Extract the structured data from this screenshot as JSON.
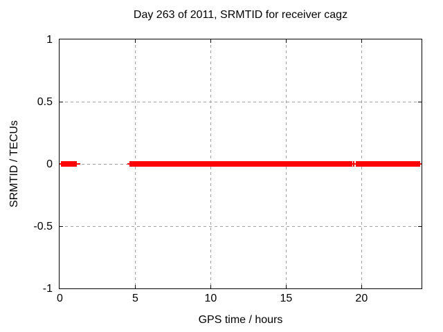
{
  "chart_data": {
    "type": "line",
    "title": "Day 263 of 2011, SRMTID for receiver cagz",
    "xlabel": "GPS time / hours",
    "ylabel": "SRMTID / TECUs",
    "xlim": [
      0,
      24
    ],
    "ylim": [
      -1,
      1
    ],
    "grid": true,
    "legend": "none",
    "colors": {
      "series": "#ff0000",
      "grid": "#a0a0a0",
      "axis": "#000000",
      "background": "#ffffff"
    },
    "xticks": [
      {
        "value": 0,
        "label": "0"
      },
      {
        "value": 5,
        "label": "5"
      },
      {
        "value": 10,
        "label": "10"
      },
      {
        "value": 15,
        "label": "15"
      },
      {
        "value": 20,
        "label": "20"
      }
    ],
    "yticks": [
      {
        "value": 1,
        "label": "1"
      },
      {
        "value": 0.5,
        "label": "0.5"
      },
      {
        "value": 0,
        "label": "0"
      },
      {
        "value": -0.5,
        "label": "-0.5"
      },
      {
        "value": -1,
        "label": "-1"
      }
    ],
    "series": [
      {
        "name": "SRMTID",
        "color": "#ff0000",
        "value": 0,
        "line_runs_hours": [
          [
            0,
            1.37
          ],
          [
            4.48,
            24
          ]
        ],
        "point_runs_hours": [
          [
            0.09,
            1.14
          ],
          [
            4.62,
            19.4
          ],
          [
            19.47,
            19.55
          ],
          [
            19.62,
            23.89
          ]
        ],
        "data_gaps_hours": [
          [
            1.37,
            4.48
          ],
          [
            19.4,
            19.47
          ],
          [
            19.55,
            19.62
          ]
        ]
      }
    ]
  }
}
